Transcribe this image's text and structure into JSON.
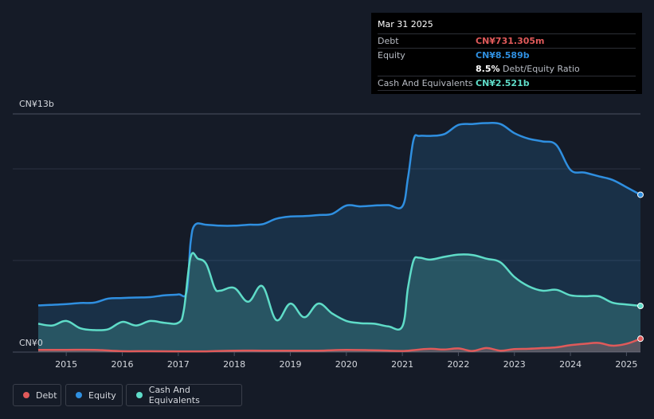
{
  "tooltip": {
    "date": "Mar 31 2025",
    "debt_label": "Debt",
    "debt_value": "CN¥731.305m",
    "equity_label": "Equity",
    "equity_value": "CN¥8.589b",
    "ratio_value": "8.5%",
    "ratio_label": "Debt/Equity Ratio",
    "cash_label": "Cash And Equivalents",
    "cash_value": "CN¥2.521b"
  },
  "legend": {
    "debt": "Debt",
    "equity": "Equity",
    "cash": "Cash And Equivalents"
  },
  "colors": {
    "debt": "#e05a5a",
    "equity": "#2f8fe0",
    "cash": "#5fdcc8",
    "background": "#151b27"
  },
  "chart_data": {
    "type": "area",
    "x_unit": "year",
    "xlim": [
      2014.5,
      2025.25
    ],
    "ylim": [
      0,
      13
    ],
    "y_tick_labels": {
      "top": "CN¥13b",
      "bottom": "CN¥0"
    },
    "x_ticks": [
      "2015",
      "2016",
      "2017",
      "2018",
      "2019",
      "2020",
      "2021",
      "2022",
      "2023",
      "2024",
      "2025"
    ],
    "series": [
      {
        "name": "Equity",
        "x": [
          2014.5,
          2015.0,
          2015.25,
          2015.5,
          2015.75,
          2016.0,
          2016.25,
          2016.5,
          2016.75,
          2017.0,
          2017.15,
          2017.22,
          2017.3,
          2017.5,
          2017.75,
          2018.0,
          2018.25,
          2018.5,
          2018.75,
          2019.0,
          2019.25,
          2019.5,
          2019.75,
          2020.0,
          2020.25,
          2020.5,
          2020.75,
          2021.0,
          2021.1,
          2021.2,
          2021.3,
          2021.5,
          2021.75,
          2022.0,
          2022.25,
          2022.5,
          2022.75,
          2023.0,
          2023.25,
          2023.5,
          2023.75,
          2024.0,
          2024.25,
          2024.5,
          2024.75,
          2025.0,
          2025.25
        ],
        "values": [
          2.55,
          2.62,
          2.68,
          2.7,
          2.92,
          2.95,
          2.98,
          3.0,
          3.1,
          3.15,
          3.3,
          6.0,
          6.95,
          6.95,
          6.9,
          6.9,
          6.95,
          6.98,
          7.28,
          7.4,
          7.42,
          7.48,
          7.55,
          8.0,
          7.95,
          8.0,
          8.02,
          7.95,
          9.5,
          11.6,
          11.8,
          11.8,
          11.9,
          12.4,
          12.45,
          12.5,
          12.45,
          11.95,
          11.65,
          11.5,
          11.3,
          9.95,
          9.8,
          9.6,
          9.4,
          9.0,
          8.589
        ]
      },
      {
        "name": "Cash And Equivalents",
        "x": [
          2014.5,
          2014.75,
          2015.0,
          2015.25,
          2015.5,
          2015.75,
          2016.0,
          2016.25,
          2016.5,
          2016.75,
          2017.0,
          2017.1,
          2017.22,
          2017.35,
          2017.5,
          2017.65,
          2017.75,
          2018.0,
          2018.25,
          2018.5,
          2018.75,
          2019.0,
          2019.25,
          2019.5,
          2019.75,
          2020.0,
          2020.25,
          2020.5,
          2020.75,
          2021.0,
          2021.1,
          2021.2,
          2021.3,
          2021.5,
          2021.75,
          2022.0,
          2022.25,
          2022.5,
          2022.75,
          2023.0,
          2023.25,
          2023.5,
          2023.75,
          2024.0,
          2024.25,
          2024.5,
          2024.75,
          2025.0,
          2025.25
        ],
        "values": [
          1.55,
          1.45,
          1.7,
          1.3,
          1.2,
          1.25,
          1.65,
          1.45,
          1.7,
          1.6,
          1.6,
          2.3,
          5.2,
          5.1,
          4.8,
          3.5,
          3.35,
          3.5,
          2.75,
          3.6,
          1.75,
          2.65,
          1.9,
          2.65,
          2.1,
          1.7,
          1.58,
          1.55,
          1.4,
          1.4,
          3.5,
          5.0,
          5.15,
          5.05,
          5.2,
          5.32,
          5.3,
          5.1,
          4.9,
          4.1,
          3.6,
          3.35,
          3.4,
          3.1,
          3.05,
          3.05,
          2.7,
          2.6,
          2.521
        ]
      },
      {
        "name": "Debt",
        "x": [
          2014.5,
          2015.0,
          2015.5,
          2016.0,
          2016.5,
          2017.0,
          2017.5,
          2018.0,
          2018.5,
          2019.0,
          2019.5,
          2020.0,
          2020.5,
          2021.0,
          2021.25,
          2021.5,
          2021.75,
          2022.0,
          2022.25,
          2022.5,
          2022.75,
          2023.0,
          2023.25,
          2023.5,
          2023.75,
          2024.0,
          2024.25,
          2024.5,
          2024.75,
          2025.0,
          2025.25
        ],
        "values": [
          0.12,
          0.12,
          0.12,
          0.05,
          0.05,
          0.04,
          0.04,
          0.08,
          0.08,
          0.08,
          0.08,
          0.12,
          0.1,
          0.06,
          0.12,
          0.18,
          0.14,
          0.2,
          0.06,
          0.22,
          0.08,
          0.16,
          0.18,
          0.22,
          0.26,
          0.38,
          0.45,
          0.5,
          0.35,
          0.45,
          0.731
        ]
      }
    ]
  }
}
